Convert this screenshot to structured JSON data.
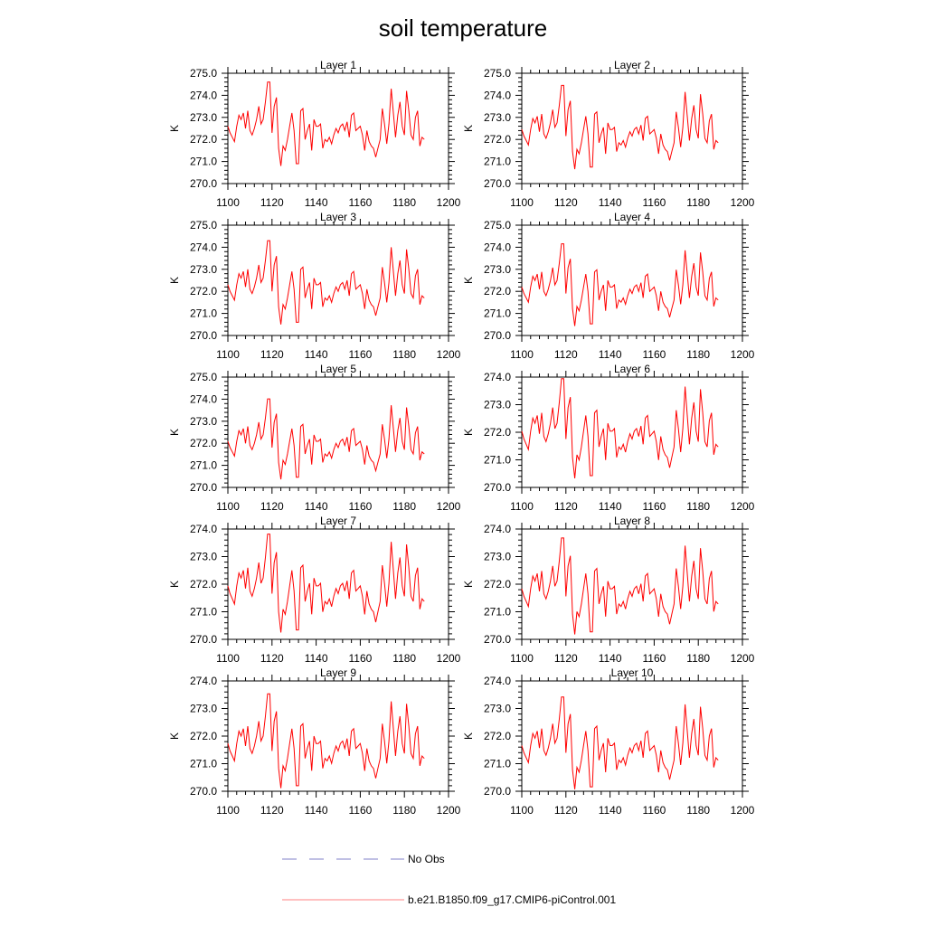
{
  "chart_data": {
    "type": "line",
    "title": "soil temperature",
    "xlim": [
      1100,
      1200
    ],
    "x_ticks": [
      "1100",
      "1120",
      "1140",
      "1160",
      "1180",
      "1200"
    ],
    "x_start": 1100,
    "x_step": 1,
    "series_name": "b.e21.B1850.f09_g17.CMIP6-piControl.001",
    "series_color": "#ff0000",
    "legend": [
      {
        "label": "No Obs",
        "style": "dashed",
        "color": "#8080c8"
      },
      {
        "label": "b.e21.B1850.f09_g17.CMIP6-piControl.001",
        "style": "solid",
        "color": "#ff8080"
      }
    ],
    "base_series": [
      272.6,
      272.3,
      272.1,
      271.9,
      272.6,
      273.1,
      272.9,
      273.2,
      272.5,
      273.3,
      272.4,
      272.2,
      272.5,
      272.9,
      273.5,
      272.7,
      272.9,
      273.7,
      274.6,
      274.6,
      272.3,
      273.5,
      273.9,
      271.6,
      270.8,
      271.7,
      271.5,
      272.0,
      272.6,
      273.2,
      272.4,
      270.9,
      270.9,
      273.3,
      273.4,
      272.0,
      272.4,
      272.7,
      271.5,
      272.9,
      272.6,
      272.6,
      272.7,
      271.6,
      272.0,
      271.9,
      272.1,
      271.8,
      272.2,
      272.5,
      272.3,
      272.6,
      272.7,
      272.4,
      272.8,
      272.1,
      273.1,
      273.2,
      272.4,
      272.5,
      272.6,
      272.2,
      271.5,
      272.4,
      271.9,
      271.7,
      271.6,
      271.2,
      271.6,
      272.0,
      273.4,
      272.7,
      271.8,
      272.7,
      274.3,
      273.2,
      272.1,
      273.1,
      273.7,
      272.6,
      272.2,
      274.2,
      273.3,
      272.2,
      272.0,
      273.0,
      273.3,
      271.7,
      272.1,
      272.0
    ],
    "panels": [
      {
        "title": "Layer 1",
        "ylabel": "K",
        "ylim": [
          270.0,
          275.0
        ],
        "yticks": [
          "270.0",
          "271.0",
          "272.0",
          "273.0",
          "274.0",
          "275.0"
        ],
        "offset": 0.0,
        "scale": 1.0
      },
      {
        "title": "Layer 2",
        "ylabel": "K",
        "ylim": [
          270.0,
          275.0
        ],
        "yticks": [
          "270.0",
          "271.0",
          "272.0",
          "273.0",
          "274.0",
          "275.0"
        ],
        "offset": -0.15,
        "scale": 1.0
      },
      {
        "title": "Layer 3",
        "ylabel": "K",
        "ylim": [
          270.0,
          275.0
        ],
        "yticks": [
          "270.0",
          "271.0",
          "272.0",
          "273.0",
          "274.0",
          "275.0"
        ],
        "offset": -0.3,
        "scale": 1.0
      },
      {
        "title": "Layer 4",
        "ylabel": "K",
        "ylim": [
          270.0,
          275.0
        ],
        "yticks": [
          "270.0",
          "271.0",
          "272.0",
          "273.0",
          "274.0",
          "275.0"
        ],
        "offset": -0.4,
        "scale": 0.98
      },
      {
        "title": "Layer 5",
        "ylabel": "K",
        "ylim": [
          270.0,
          275.0
        ],
        "yticks": [
          "270.0",
          "271.0",
          "272.0",
          "273.0",
          "274.0",
          "275.0"
        ],
        "offset": -0.5,
        "scale": 0.96
      },
      {
        "title": "Layer 6",
        "ylabel": "K",
        "ylim": [
          270.0,
          274.0
        ],
        "yticks": [
          "270.0",
          "271.0",
          "272.0",
          "273.0",
          "274.0"
        ],
        "offset": -0.55,
        "scale": 0.95
      },
      {
        "title": "Layer 7",
        "ylabel": "K",
        "ylim": [
          270.0,
          274.0
        ],
        "yticks": [
          "270.0",
          "271.0",
          "272.0",
          "273.0",
          "274.0"
        ],
        "offset": -0.65,
        "scale": 0.94
      },
      {
        "title": "Layer 8",
        "ylabel": "K",
        "ylim": [
          270.0,
          274.0
        ],
        "yticks": [
          "270.0",
          "271.0",
          "272.0",
          "273.0",
          "274.0"
        ],
        "offset": -0.75,
        "scale": 0.92
      },
      {
        "title": "Layer 9",
        "ylabel": "K",
        "ylim": [
          270.0,
          274.0
        ],
        "yticks": [
          "270.0",
          "271.0",
          "272.0",
          "273.0",
          "274.0"
        ],
        "offset": -0.85,
        "scale": 0.9
      },
      {
        "title": "Layer 10",
        "ylabel": "K",
        "ylim": [
          270.0,
          274.0
        ],
        "yticks": [
          "270.0",
          "271.0",
          "272.0",
          "273.0",
          "274.0"
        ],
        "offset": -0.92,
        "scale": 0.88
      }
    ]
  }
}
